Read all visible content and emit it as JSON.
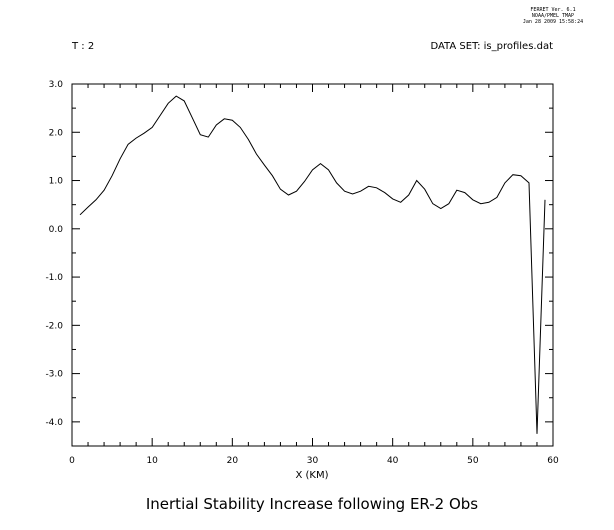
{
  "header": {
    "ferret_version": "FERRET Ver. 6.1",
    "org": "NOAA/PMEL TMAP",
    "timestamp": "Jan 28 2009 15:58:24",
    "t_label": "T : 2",
    "dataset_label": "DATA SET: is_profiles.dat"
  },
  "chart_data": {
    "type": "line",
    "title": "Inertial Stability Increase following ER-2 Obs",
    "xlabel": "X (KM)",
    "ylabel": "",
    "xlim": [
      0,
      60
    ],
    "ylim": [
      -4.5,
      3.0
    ],
    "grid": false,
    "x_ticks": [
      0,
      10,
      20,
      30,
      40,
      50,
      60
    ],
    "x_tick_labels": [
      "0",
      "10",
      "20",
      "30",
      "40",
      "50",
      "60"
    ],
    "y_ticks": [
      3.0,
      2.0,
      1.0,
      0.0,
      -1.0,
      -2.0,
      -3.0,
      -4.0
    ],
    "y_tick_labels": [
      "3.0",
      "2.0",
      "1.0",
      "0.0",
      "-1.0",
      "-2.0",
      "-3.0",
      "-4.0"
    ],
    "series": [
      {
        "x": [
          1,
          2,
          3,
          4,
          5,
          6,
          7,
          8,
          9,
          10,
          11,
          12,
          13,
          14,
          15,
          16,
          17,
          18,
          19,
          20,
          21,
          22,
          23,
          24,
          25,
          26,
          27,
          28,
          29,
          30,
          31,
          32,
          33,
          34,
          35,
          36,
          37,
          38,
          39,
          40,
          41,
          42,
          43,
          44,
          45,
          46,
          47,
          48,
          49,
          50,
          51,
          52,
          53,
          54,
          55,
          56,
          57,
          58,
          59
        ],
        "y": [
          0.29,
          0.45,
          0.6,
          0.8,
          1.1,
          1.45,
          1.75,
          1.88,
          1.98,
          2.1,
          2.35,
          2.6,
          2.75,
          2.65,
          2.3,
          1.95,
          1.9,
          2.15,
          2.28,
          2.25,
          2.1,
          1.85,
          1.55,
          1.32,
          1.1,
          0.82,
          0.7,
          0.78,
          0.98,
          1.22,
          1.35,
          1.22,
          0.95,
          0.78,
          0.72,
          0.78,
          0.88,
          0.85,
          0.75,
          0.62,
          0.55,
          0.7,
          1.0,
          0.82,
          0.52,
          0.42,
          0.52,
          0.8,
          0.75,
          0.6,
          0.52,
          0.55,
          0.65,
          0.95,
          1.12,
          1.1,
          0.95,
          -4.25,
          0.6
        ]
      }
    ]
  }
}
